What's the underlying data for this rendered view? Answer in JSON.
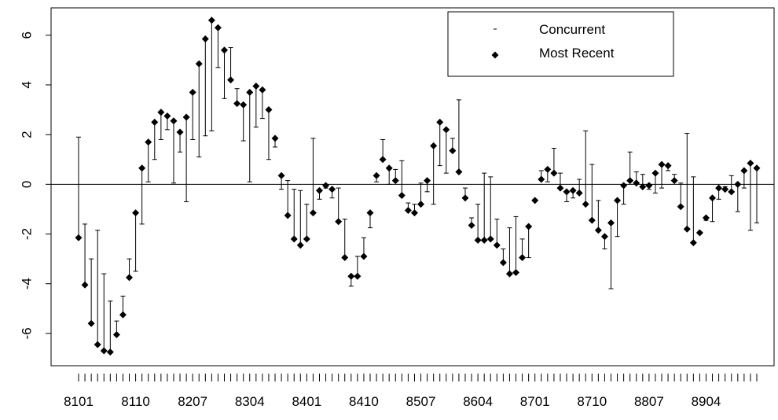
{
  "chart_data": {
    "type": "range-dot",
    "categories": [
      "8101",
      null,
      null,
      null,
      null,
      null,
      null,
      null,
      null,
      "8110",
      null,
      null,
      null,
      null,
      null,
      null,
      null,
      null,
      "8207",
      null,
      null,
      null,
      null,
      null,
      null,
      null,
      null,
      "8304",
      null,
      null,
      null,
      null,
      null,
      null,
      null,
      null,
      "8401",
      null,
      null,
      null,
      null,
      null,
      null,
      null,
      null,
      "8410",
      null,
      null,
      null,
      null,
      null,
      null,
      null,
      null,
      "8507",
      null,
      null,
      null,
      null,
      null,
      null,
      null,
      null,
      "8604",
      null,
      null,
      null,
      null,
      null,
      null,
      null,
      null,
      "8701",
      null,
      null,
      null,
      null,
      null,
      null,
      null,
      null,
      "8710",
      null,
      null,
      null,
      null,
      null,
      null,
      null,
      null,
      "8807",
      null,
      null,
      null,
      null,
      null,
      null,
      null,
      null,
      "8904",
      null,
      null,
      null,
      null,
      null,
      null,
      null,
      null
    ],
    "series": [
      {
        "name": "Concurrent",
        "color": "#000000",
        "values": [
          1.9,
          -1.6,
          -3.0,
          -1.85,
          -3.6,
          -4.7,
          -5.5,
          -4.5,
          -3.0,
          -3.5,
          -1.6,
          0.1,
          1.0,
          1.8,
          2.2,
          0.05,
          1.3,
          -0.7,
          1.8,
          1.1,
          1.95,
          2.15,
          4.7,
          3.45,
          5.5,
          3.85,
          1.75,
          0.1,
          2.3,
          2.65,
          1.0,
          1.5,
          -0.2,
          0.15,
          -0.2,
          -0.25,
          -0.8,
          1.85,
          -0.6,
          -0.15,
          -0.55,
          -0.15,
          -1.4,
          -4.1,
          -2.9,
          -2.15,
          -1.75,
          0.1,
          1.8,
          0.0,
          0.6,
          0.95,
          -0.75,
          -0.8,
          0.05,
          -0.3,
          -0.8,
          0.75,
          0.45,
          1.85,
          3.4,
          -0.15,
          -1.35,
          -0.8,
          0.45,
          0.3,
          -1.4,
          -2.6,
          -1.75,
          -1.3,
          -2.2,
          -2.95,
          -0.6,
          0.55,
          0.1,
          1.45,
          0.45,
          -0.7,
          -0.55,
          0.2,
          2.15,
          0.8,
          -0.65,
          -2.6,
          -4.2,
          -2.1,
          -0.8,
          1.3,
          0.5,
          0.4,
          -0.2,
          -0.35,
          -0.15,
          0.55,
          0.4,
          0.05,
          2.05,
          0.3,
          -1.9,
          -1.45,
          -1.5,
          -0.6,
          -0.1,
          0.35,
          -1.1,
          -0.15,
          -1.85,
          -1.55
        ]
      },
      {
        "name": "Most Recent",
        "color": "#000000",
        "values": [
          -2.15,
          -4.05,
          -5.6,
          -6.45,
          -6.7,
          -6.75,
          -6.05,
          -5.25,
          -3.75,
          -1.15,
          0.65,
          1.7,
          2.5,
          2.9,
          2.75,
          2.55,
          2.1,
          2.7,
          3.7,
          4.85,
          5.85,
          6.6,
          6.3,
          5.4,
          4.2,
          3.25,
          3.2,
          3.7,
          3.95,
          3.8,
          3.0,
          1.85,
          0.35,
          -1.25,
          -2.2,
          -2.45,
          -2.2,
          -1.15,
          -0.25,
          -0.05,
          -0.2,
          -1.5,
          -2.95,
          -3.7,
          -3.7,
          -2.9,
          -1.15,
          0.35,
          1.0,
          0.65,
          0.15,
          -0.45,
          -1.05,
          -1.15,
          -0.8,
          0.15,
          1.55,
          2.5,
          2.2,
          1.35,
          0.5,
          -0.55,
          -1.65,
          -2.25,
          -2.25,
          -2.2,
          -2.45,
          -3.15,
          -3.6,
          -3.55,
          -2.95,
          -1.7,
          -0.65,
          0.2,
          0.6,
          0.45,
          -0.15,
          -0.3,
          -0.25,
          -0.35,
          -0.8,
          -1.45,
          -1.85,
          -2.1,
          -1.55,
          -0.65,
          -0.05,
          0.15,
          0.05,
          -0.1,
          -0.05,
          0.45,
          0.8,
          0.75,
          0.15,
          -0.9,
          -1.8,
          -2.35,
          -1.95,
          -1.35,
          -0.55,
          -0.15,
          -0.2,
          -0.3,
          0.0,
          0.55,
          0.85,
          0.65
        ]
      }
    ],
    "ylim": [
      -7.3,
      7.1
    ],
    "yticks": [
      -6,
      -4,
      -2,
      0,
      2,
      4,
      6
    ],
    "reference_line": 0,
    "legend": "top-right"
  }
}
